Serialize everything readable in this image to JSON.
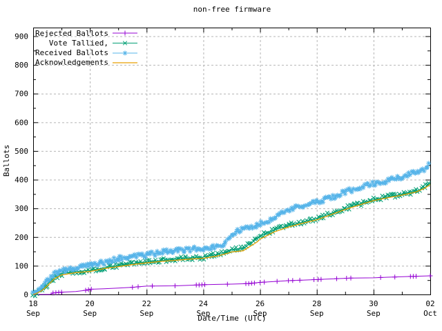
{
  "title": "non-free firmware",
  "axes": {
    "ylabel": "Ballots",
    "xlabel": "Date/Time (UTC)"
  },
  "colors": {
    "background": "#ffffff",
    "border": "#000000",
    "grid": "#b4b4b4",
    "text": "#000000"
  },
  "chart_data": {
    "type": "line",
    "title": "non-free firmware",
    "xlabel": "Date/Time (UTC)",
    "ylabel": "Ballots",
    "ylim": [
      0,
      930
    ],
    "y_major_ticks": [
      0,
      100,
      200,
      300,
      400,
      500,
      600,
      700,
      800,
      900
    ],
    "y_minor_step": 50,
    "grid": true,
    "legend_position": "top-left",
    "x_axis": {
      "range_days": [
        0,
        14
      ],
      "major_tick_interval_days": 2,
      "minor_tick_interval_days": 1,
      "major_tick_labels": [
        {
          "day": 0,
          "line1": "18",
          "line2": "Sep"
        },
        {
          "day": 2,
          "line1": "20",
          "line2": "Sep"
        },
        {
          "day": 4,
          "line1": "22",
          "line2": "Sep"
        },
        {
          "day": 6,
          "line1": "24",
          "line2": "Sep"
        },
        {
          "day": 8,
          "line1": "26",
          "line2": "Sep"
        },
        {
          "day": 10,
          "line1": "28",
          "line2": "Sep"
        },
        {
          "day": 12,
          "line1": "30",
          "line2": "Sep"
        },
        {
          "day": 14,
          "line1": "02",
          "line2": "Oct"
        }
      ]
    },
    "series": [
      {
        "name": "Rejected Ballots",
        "color": "#9400d3",
        "marker": "plus",
        "marker_style": "sparse",
        "days": [
          0,
          0.6,
          0.7,
          1,
          1.5,
          1.9,
          2,
          2.5,
          3,
          3.5,
          4,
          5,
          5.8,
          6,
          6.5,
          7,
          7.6,
          8,
          8.5,
          9,
          9.5,
          10,
          10.7,
          11.2,
          12,
          12.5,
          13.4,
          14
        ],
        "values": [
          0,
          0,
          5,
          8,
          10,
          15,
          18,
          20,
          22,
          25,
          29,
          30,
          33,
          34,
          35,
          36,
          38,
          42,
          45,
          48,
          50,
          52,
          55,
          57,
          58,
          60,
          63,
          65
        ],
        "marker_days": [
          0.7,
          0.8,
          0.9,
          1.0,
          1.85,
          1.95,
          2.05,
          3.5,
          3.7,
          4.2,
          5.0,
          5.75,
          5.85,
          5.95,
          6.05,
          6.85,
          7.5,
          7.6,
          7.7,
          7.8,
          8.0,
          8.15,
          8.6,
          9.0,
          9.15,
          9.4,
          9.9,
          10.05,
          10.15,
          10.7,
          11.05,
          11.2,
          12.25,
          12.75,
          13.3,
          13.4,
          13.5,
          14.0
        ]
      },
      {
        "name": "Vote Tallied,",
        "color": "#009e73",
        "marker": "cross",
        "marker_style": "band",
        "days": [
          0,
          0.1,
          0.3,
          0.5,
          0.75,
          1,
          1.5,
          2,
          2.5,
          3,
          3.5,
          4,
          4.5,
          5,
          5.5,
          6,
          6.5,
          6.9,
          7,
          7.4,
          7.9,
          8,
          8.5,
          9,
          9.5,
          10,
          10.5,
          11,
          11.5,
          12,
          12.5,
          13,
          13.5,
          13.8,
          14
        ],
        "values": [
          0,
          4,
          15,
          35,
          60,
          72,
          80,
          84,
          93,
          101,
          108,
          113,
          118,
          123,
          127,
          130,
          140,
          152,
          156,
          160,
          195,
          205,
          225,
          240,
          252,
          265,
          282,
          300,
          315,
          330,
          340,
          349,
          360,
          372,
          388
        ]
      },
      {
        "name": "Received Ballots",
        "color": "#56b4e9",
        "marker": "asterisk",
        "marker_style": "band",
        "days": [
          0,
          0.1,
          0.3,
          0.5,
          0.75,
          1,
          1.5,
          2,
          2.5,
          3,
          3.5,
          4,
          4.5,
          5,
          5.5,
          6,
          6.5,
          6.65,
          6.9,
          7,
          7.5,
          8,
          8.5,
          9,
          9.5,
          10,
          10.5,
          11,
          11.5,
          12,
          12.5,
          13,
          13.5,
          13.8,
          14
        ],
        "values": [
          0,
          5,
          22,
          48,
          70,
          82,
          92,
          101,
          112,
          125,
          131,
          137,
          146,
          154,
          157,
          160,
          168,
          172,
          198,
          212,
          230,
          245,
          268,
          294,
          310,
          322,
          338,
          357,
          372,
          386,
          396,
          410,
          425,
          438,
          455
        ]
      },
      {
        "name": "Acknowledgements",
        "color": "#e69f00",
        "marker": "none",
        "marker_style": "none",
        "days": [
          0,
          0.1,
          0.3,
          0.5,
          0.75,
          1,
          1.5,
          2,
          2.5,
          3,
          3.5,
          4,
          4.5,
          5,
          5.5,
          6,
          6.5,
          6.9,
          7,
          7.4,
          7.9,
          8,
          8.5,
          9,
          9.5,
          10,
          10.5,
          11,
          11.5,
          12,
          12.5,
          13,
          13.5,
          13.8,
          14
        ],
        "values": [
          0,
          3,
          13,
          30,
          55,
          68,
          76,
          80,
          90,
          97,
          104,
          110,
          115,
          119,
          123,
          126,
          134,
          145,
          148,
          152,
          183,
          193,
          218,
          235,
          248,
          260,
          278,
          296,
          312,
          327,
          337,
          346,
          357,
          370,
          383
        ]
      }
    ]
  }
}
